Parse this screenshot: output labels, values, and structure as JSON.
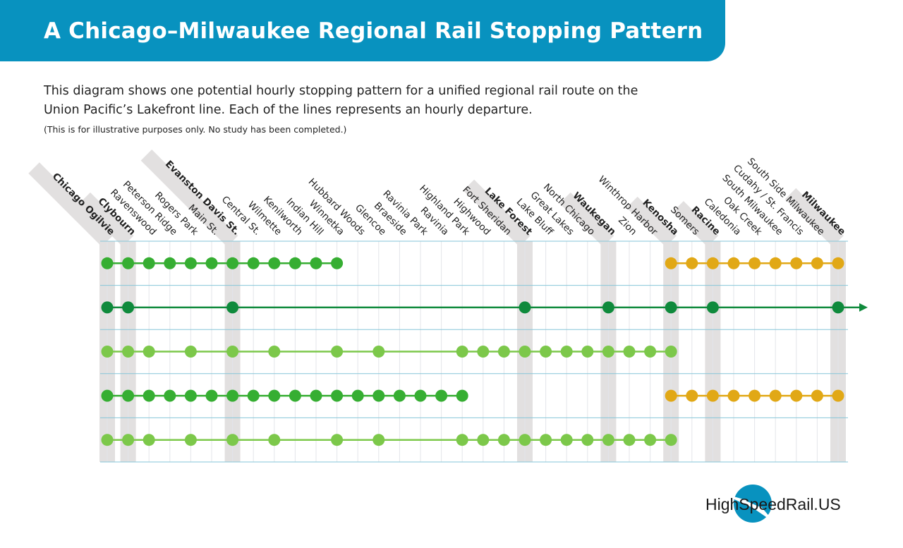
{
  "header": {
    "title": "A Chicago–Milwaukee Regional Rail Stopping Pattern"
  },
  "intro": {
    "text": "This diagram shows one potential hourly stopping pattern for a unified regional rail route on the Union Pacific’s Lakefront line. Each of the lines represents an hourly departure.",
    "note": "(This is for illustrative purposes only. No study has been completed.)"
  },
  "colors": {
    "banner": "#0892bf",
    "grid": "#86c6d8",
    "highlight": "#e2e0e0",
    "green": "#36ae32",
    "dark_green": "#0f8a3c",
    "light_green": "#7cc84a",
    "gold": "#e1a816"
  },
  "stations": [
    {
      "name": "Chicago Ogilvie",
      "major": true
    },
    {
      "name": "Clybourn",
      "major": true
    },
    {
      "name": "Ravenswood"
    },
    {
      "name": "Peterson Ridge"
    },
    {
      "name": "Rogers Park"
    },
    {
      "name": "Main St."
    },
    {
      "name": "Evanston Davis St.",
      "major": true
    },
    {
      "name": "Central St."
    },
    {
      "name": "Wilmette"
    },
    {
      "name": "Kenilworth"
    },
    {
      "name": "Indian Hill"
    },
    {
      "name": "Winnetka"
    },
    {
      "name": "Hubbard Woods"
    },
    {
      "name": "Glencoe"
    },
    {
      "name": "Braeside"
    },
    {
      "name": "Ravinia Park"
    },
    {
      "name": "Ravinia"
    },
    {
      "name": "Highland Park"
    },
    {
      "name": "Highwood"
    },
    {
      "name": "Fort Sheridan"
    },
    {
      "name": "Lake Forest",
      "major": true
    },
    {
      "name": "Lake Bluff"
    },
    {
      "name": "Great Lakes"
    },
    {
      "name": "North Chicago"
    },
    {
      "name": "Waukegan",
      "major": true
    },
    {
      "name": "Zion"
    },
    {
      "name": "Winthrop Harbor"
    },
    {
      "name": "Kenosha",
      "major": true
    },
    {
      "name": "Somers"
    },
    {
      "name": "Racine",
      "major": true
    },
    {
      "name": "Caledonia"
    },
    {
      "name": "Oak Creek"
    },
    {
      "name": "South Milwaukee"
    },
    {
      "name": "Cudahy / St. Francis"
    },
    {
      "name": "South Side Milwaukee"
    },
    {
      "name": "Milwaukee",
      "major": true
    }
  ],
  "departures": [
    {
      "segments": [
        {
          "color": "green",
          "stops": [
            0,
            1,
            2,
            3,
            4,
            5,
            6,
            7,
            8,
            9,
            10,
            11
          ]
        },
        {
          "color": "gold",
          "stops": [
            27,
            28,
            29,
            30,
            31,
            32,
            33,
            34,
            35
          ]
        }
      ]
    },
    {
      "segments": [
        {
          "color": "dark_green",
          "stops": [
            0,
            1,
            6,
            20,
            24,
            27,
            29,
            35
          ],
          "continues": true
        }
      ]
    },
    {
      "segments": [
        {
          "color": "light_green",
          "stops": [
            0,
            1,
            2,
            4,
            6,
            8,
            11,
            13,
            17,
            18,
            19,
            20,
            21,
            22,
            23,
            24,
            25,
            26,
            27
          ]
        }
      ]
    },
    {
      "segments": [
        {
          "color": "green",
          "stops": [
            0,
            1,
            2,
            3,
            4,
            5,
            6,
            7,
            8,
            9,
            10,
            11,
            12,
            13,
            14,
            15,
            16,
            17
          ]
        },
        {
          "color": "gold",
          "stops": [
            27,
            28,
            29,
            30,
            31,
            32,
            33,
            34,
            35
          ]
        }
      ]
    },
    {
      "segments": [
        {
          "color": "light_green",
          "stops": [
            0,
            1,
            2,
            4,
            6,
            8,
            11,
            13,
            17,
            18,
            19,
            20,
            21,
            22,
            23,
            24,
            25,
            26,
            27
          ]
        }
      ]
    }
  ],
  "logo": {
    "text": "HighSpeedRail.US"
  }
}
